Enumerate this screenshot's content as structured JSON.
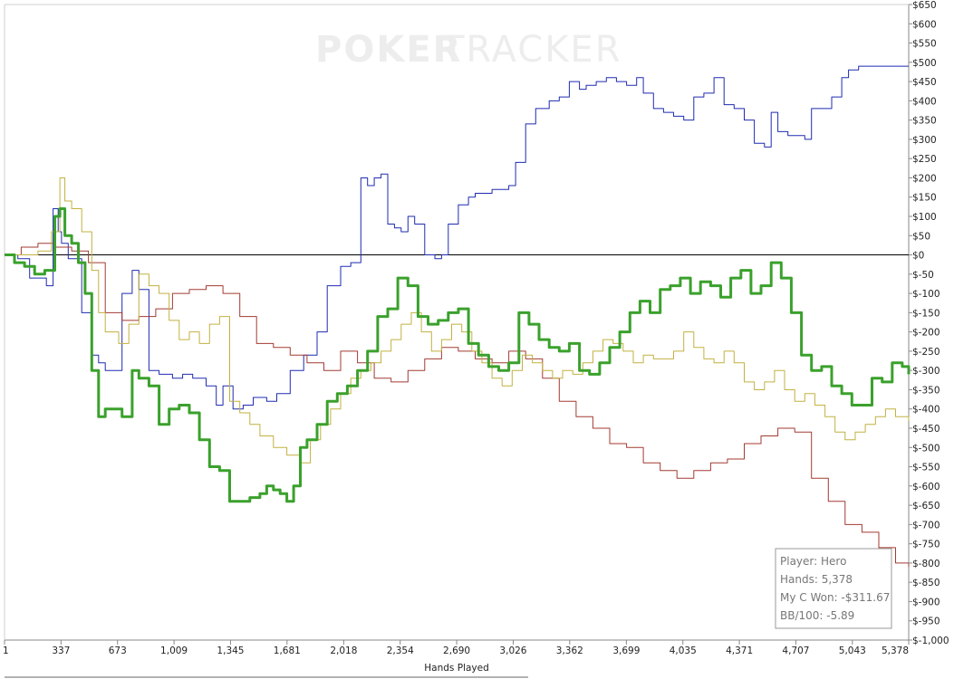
{
  "watermark": {
    "bold": "POKER",
    "thin": "TRACKER"
  },
  "tooltip": {
    "player": "Player: Hero",
    "hands": "Hands: 5,378",
    "won": "My C Won: -$311.67",
    "bb100": "BB/100: -5.89"
  },
  "colors": {
    "blue": "#1f2bb0",
    "red": "#a33a32",
    "olive": "#c2b140",
    "green": "#3aa12c",
    "zero_line": "#000000"
  },
  "chart_data": {
    "type": "line",
    "xlabel": "Hands Played",
    "ylabel": "",
    "xlim": [
      1,
      5378
    ],
    "ylim": [
      -1000,
      650
    ],
    "x_ticks": [
      1,
      337,
      673,
      1009,
      1345,
      1681,
      2018,
      2354,
      2690,
      3026,
      3362,
      3699,
      4035,
      4371,
      4707,
      5043,
      5378
    ],
    "x_tick_labels": [
      "1",
      "337",
      "673",
      "1,009",
      "1,345",
      "1,681",
      "2,018",
      "2,354",
      "2,690",
      "3,026",
      "3,362",
      "3,699",
      "4,035",
      "4,371",
      "4,707",
      "5,043",
      "5,378"
    ],
    "y_ticks": [
      650,
      600,
      550,
      500,
      450,
      400,
      350,
      300,
      250,
      200,
      150,
      100,
      50,
      0,
      -50,
      -100,
      -150,
      -200,
      -250,
      -300,
      -350,
      -400,
      -450,
      -500,
      -550,
      -600,
      -650,
      -700,
      -750,
      -800,
      -850,
      -900,
      -950,
      -1000
    ],
    "y_tick_labels": [
      "$650",
      "$600",
      "$550",
      "$500",
      "$450",
      "$400",
      "$350",
      "$300",
      "$250",
      "$200",
      "$150",
      "$100",
      "$50",
      "$0",
      "$-50",
      "$-100",
      "$-150",
      "$-200",
      "$-250",
      "$-300",
      "$-350",
      "$-400",
      "$-450",
      "$-500",
      "$-550",
      "$-600",
      "$-650",
      "$-700",
      "$-750",
      "$-800",
      "$-850",
      "$-900",
      "$-950",
      "$-1,000"
    ],
    "series": [
      {
        "color": "#1f2bb0",
        "width": 1,
        "x": [
          1,
          80,
          150,
          250,
          290,
          320,
          340,
          380,
          460,
          520,
          560,
          600,
          700,
          760,
          800,
          860,
          920,
          1000,
          1060,
          1120,
          1200,
          1260,
          1300,
          1360,
          1420,
          1480,
          1560,
          1620,
          1700,
          1780,
          1860,
          1920,
          2000,
          2060,
          2120,
          2160,
          2200,
          2240,
          2280,
          2320,
          2360,
          2400,
          2440,
          2500,
          2560,
          2600,
          2640,
          2700,
          2760,
          2800,
          2900,
          3000,
          3040,
          3100,
          3160,
          3240,
          3300,
          3360,
          3420,
          3460,
          3520,
          3580,
          3640,
          3700,
          3760,
          3800,
          3860,
          3920,
          3980,
          4040,
          4100,
          4160,
          4220,
          4280,
          4340,
          4400,
          4460,
          4520,
          4560,
          4600,
          4660,
          4720,
          4760,
          4800,
          4860,
          4920,
          4980,
          5020,
          5080,
          5140,
          5180,
          5240,
          5300,
          5340,
          5378
        ],
        "y": [
          0,
          -10,
          -60,
          -80,
          120,
          60,
          30,
          -10,
          -150,
          -260,
          -280,
          -300,
          -100,
          -40,
          -90,
          -300,
          -310,
          -320,
          -310,
          -320,
          -340,
          -390,
          -340,
          -400,
          -390,
          -370,
          -380,
          -360,
          -300,
          -260,
          -200,
          -80,
          -30,
          -20,
          200,
          180,
          200,
          210,
          80,
          70,
          60,
          100,
          80,
          0,
          -10,
          0,
          80,
          130,
          150,
          160,
          170,
          180,
          240,
          340,
          380,
          400,
          410,
          450,
          430,
          440,
          450,
          460,
          450,
          440,
          460,
          420,
          380,
          370,
          360,
          350,
          410,
          420,
          460,
          390,
          380,
          350,
          290,
          280,
          370,
          320,
          310,
          310,
          300,
          380,
          380,
          410,
          460,
          480,
          490,
          490,
          490,
          490,
          490,
          490,
          490
        ]
      },
      {
        "color": "#a33a32",
        "width": 1,
        "x": [
          1,
          100,
          200,
          300,
          400,
          500,
          600,
          700,
          800,
          900,
          1000,
          1100,
          1200,
          1300,
          1400,
          1500,
          1600,
          1700,
          1800,
          1900,
          2000,
          2100,
          2200,
          2300,
          2400,
          2500,
          2600,
          2700,
          2800,
          2900,
          3000,
          3100,
          3200,
          3300,
          3400,
          3500,
          3600,
          3700,
          3800,
          3900,
          4000,
          4100,
          4200,
          4300,
          4400,
          4500,
          4600,
          4700,
          4800,
          4900,
          5000,
          5100,
          5200,
          5300,
          5378
        ],
        "y": [
          0,
          20,
          30,
          20,
          10,
          -20,
          -150,
          -170,
          -160,
          -140,
          -100,
          -90,
          -80,
          -100,
          -160,
          -230,
          -240,
          -260,
          -280,
          -300,
          -250,
          -280,
          -320,
          -330,
          -300,
          -270,
          -240,
          -250,
          -270,
          -280,
          -250,
          -270,
          -320,
          -380,
          -420,
          -450,
          -490,
          -500,
          -540,
          -560,
          -580,
          -560,
          -540,
          -530,
          -490,
          -470,
          -450,
          -460,
          -580,
          -640,
          -700,
          -720,
          -760,
          -800,
          -810
        ]
      },
      {
        "color": "#c2b140",
        "width": 1,
        "x": [
          1,
          100,
          200,
          280,
          330,
          360,
          400,
          460,
          520,
          560,
          600,
          680,
          740,
          800,
          860,
          920,
          980,
          1040,
          1100,
          1160,
          1220,
          1280,
          1340,
          1400,
          1460,
          1520,
          1600,
          1680,
          1760,
          1820,
          1880,
          1940,
          2000,
          2060,
          2120,
          2180,
          2240,
          2300,
          2360,
          2420,
          2480,
          2540,
          2600,
          2660,
          2720,
          2780,
          2840,
          2900,
          2960,
          3020,
          3080,
          3140,
          3200,
          3260,
          3320,
          3380,
          3440,
          3500,
          3560,
          3620,
          3680,
          3740,
          3800,
          3860,
          3920,
          3980,
          4040,
          4100,
          4160,
          4220,
          4280,
          4340,
          4400,
          4460,
          4520,
          4580,
          4640,
          4700,
          4760,
          4820,
          4880,
          4940,
          5000,
          5060,
          5120,
          5180,
          5240,
          5300,
          5378
        ],
        "y": [
          0,
          0,
          10,
          60,
          200,
          140,
          120,
          60,
          -40,
          -150,
          -200,
          -230,
          -180,
          -50,
          -80,
          -100,
          -170,
          -220,
          -200,
          -230,
          -180,
          -160,
          -380,
          -410,
          -440,
          -470,
          -500,
          -520,
          -540,
          -480,
          -440,
          -400,
          -360,
          -320,
          -300,
          -280,
          -250,
          -220,
          -180,
          -150,
          -200,
          -250,
          -220,
          -180,
          -200,
          -250,
          -280,
          -320,
          -340,
          -300,
          -260,
          -280,
          -300,
          -320,
          -300,
          -310,
          -280,
          -250,
          -220,
          -230,
          -250,
          -280,
          -260,
          -270,
          -270,
          -250,
          -200,
          -240,
          -270,
          -280,
          -250,
          -280,
          -330,
          -350,
          -330,
          -300,
          -350,
          -380,
          -360,
          -390,
          -420,
          -460,
          -480,
          -460,
          -440,
          -420,
          -400,
          -420,
          -430
        ]
      },
      {
        "color": "#3aa12c",
        "width": 3,
        "x": [
          1,
          60,
          120,
          180,
          240,
          300,
          330,
          360,
          400,
          440,
          480,
          520,
          560,
          600,
          640,
          700,
          760,
          800,
          860,
          920,
          980,
          1040,
          1100,
          1160,
          1220,
          1280,
          1340,
          1400,
          1460,
          1520,
          1560,
          1600,
          1640,
          1680,
          1720,
          1760,
          1800,
          1860,
          1920,
          1980,
          2040,
          2100,
          2160,
          2220,
          2280,
          2340,
          2400,
          2460,
          2520,
          2580,
          2640,
          2700,
          2760,
          2820,
          2880,
          2940,
          3000,
          3060,
          3120,
          3180,
          3240,
          3300,
          3360,
          3420,
          3480,
          3540,
          3600,
          3660,
          3720,
          3780,
          3840,
          3900,
          3960,
          4020,
          4080,
          4140,
          4200,
          4260,
          4320,
          4380,
          4440,
          4500,
          4560,
          4620,
          4680,
          4740,
          4800,
          4860,
          4920,
          4980,
          5040,
          5100,
          5160,
          5220,
          5280,
          5340,
          5378
        ],
        "y": [
          0,
          -20,
          -30,
          -50,
          -40,
          100,
          120,
          50,
          30,
          -20,
          -100,
          -300,
          -420,
          -400,
          -400,
          -420,
          -300,
          -320,
          -340,
          -440,
          -400,
          -390,
          -410,
          -480,
          -550,
          -560,
          -640,
          -640,
          -630,
          -620,
          -600,
          -610,
          -620,
          -640,
          -600,
          -500,
          -480,
          -440,
          -380,
          -360,
          -340,
          -300,
          -250,
          -160,
          -140,
          -60,
          -80,
          -160,
          -180,
          -170,
          -150,
          -140,
          -230,
          -260,
          -290,
          -300,
          -280,
          -150,
          -180,
          -220,
          -240,
          -250,
          -230,
          -300,
          -310,
          -280,
          -240,
          -200,
          -150,
          -120,
          -150,
          -90,
          -80,
          -60,
          -100,
          -70,
          -80,
          -110,
          -60,
          -40,
          -100,
          -80,
          -20,
          -60,
          -150,
          -260,
          -300,
          -290,
          -340,
          -360,
          -390,
          -390,
          -320,
          -330,
          -280,
          -290,
          -310
        ]
      }
    ]
  }
}
